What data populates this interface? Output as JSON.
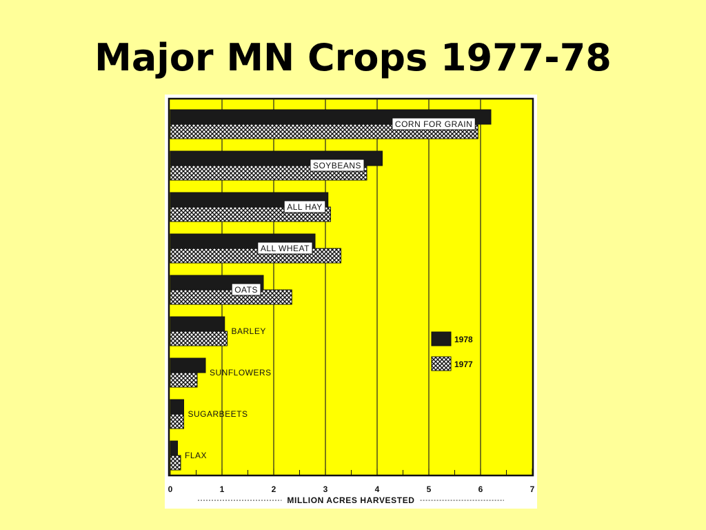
{
  "slide": {
    "title": "Major MN Crops 1977-78"
  },
  "chart_data": {
    "type": "bar",
    "orientation": "horizontal",
    "title": "",
    "xlabel": "MILLION ACRES HARVESTED",
    "ylabel": "",
    "xlim": [
      0,
      7
    ],
    "xticks": [
      0,
      1,
      2,
      3,
      4,
      5,
      6,
      7
    ],
    "grid": true,
    "legend_position": "right",
    "categories": [
      "CORN FOR GRAIN",
      "SOYBEANS",
      "ALL HAY",
      "ALL WHEAT",
      "OATS",
      "BARLEY",
      "SUNFLOWERS",
      "SUGARBEETS",
      "FLAX"
    ],
    "series": [
      {
        "name": "1978",
        "values": [
          6.2,
          4.1,
          3.05,
          2.8,
          1.8,
          1.05,
          0.68,
          0.26,
          0.14
        ],
        "color": "#1a1a1a",
        "pattern": "solid"
      },
      {
        "name": "1977",
        "values": [
          5.95,
          3.8,
          3.1,
          3.3,
          2.35,
          1.1,
          0.52,
          0.26,
          0.2
        ],
        "color": "#ffffff",
        "pattern": "crosshatch"
      }
    ],
    "label_style": [
      "boxed",
      "boxed",
      "boxed",
      "boxed",
      "boxed",
      "plain",
      "plain",
      "plain",
      "plain"
    ]
  }
}
